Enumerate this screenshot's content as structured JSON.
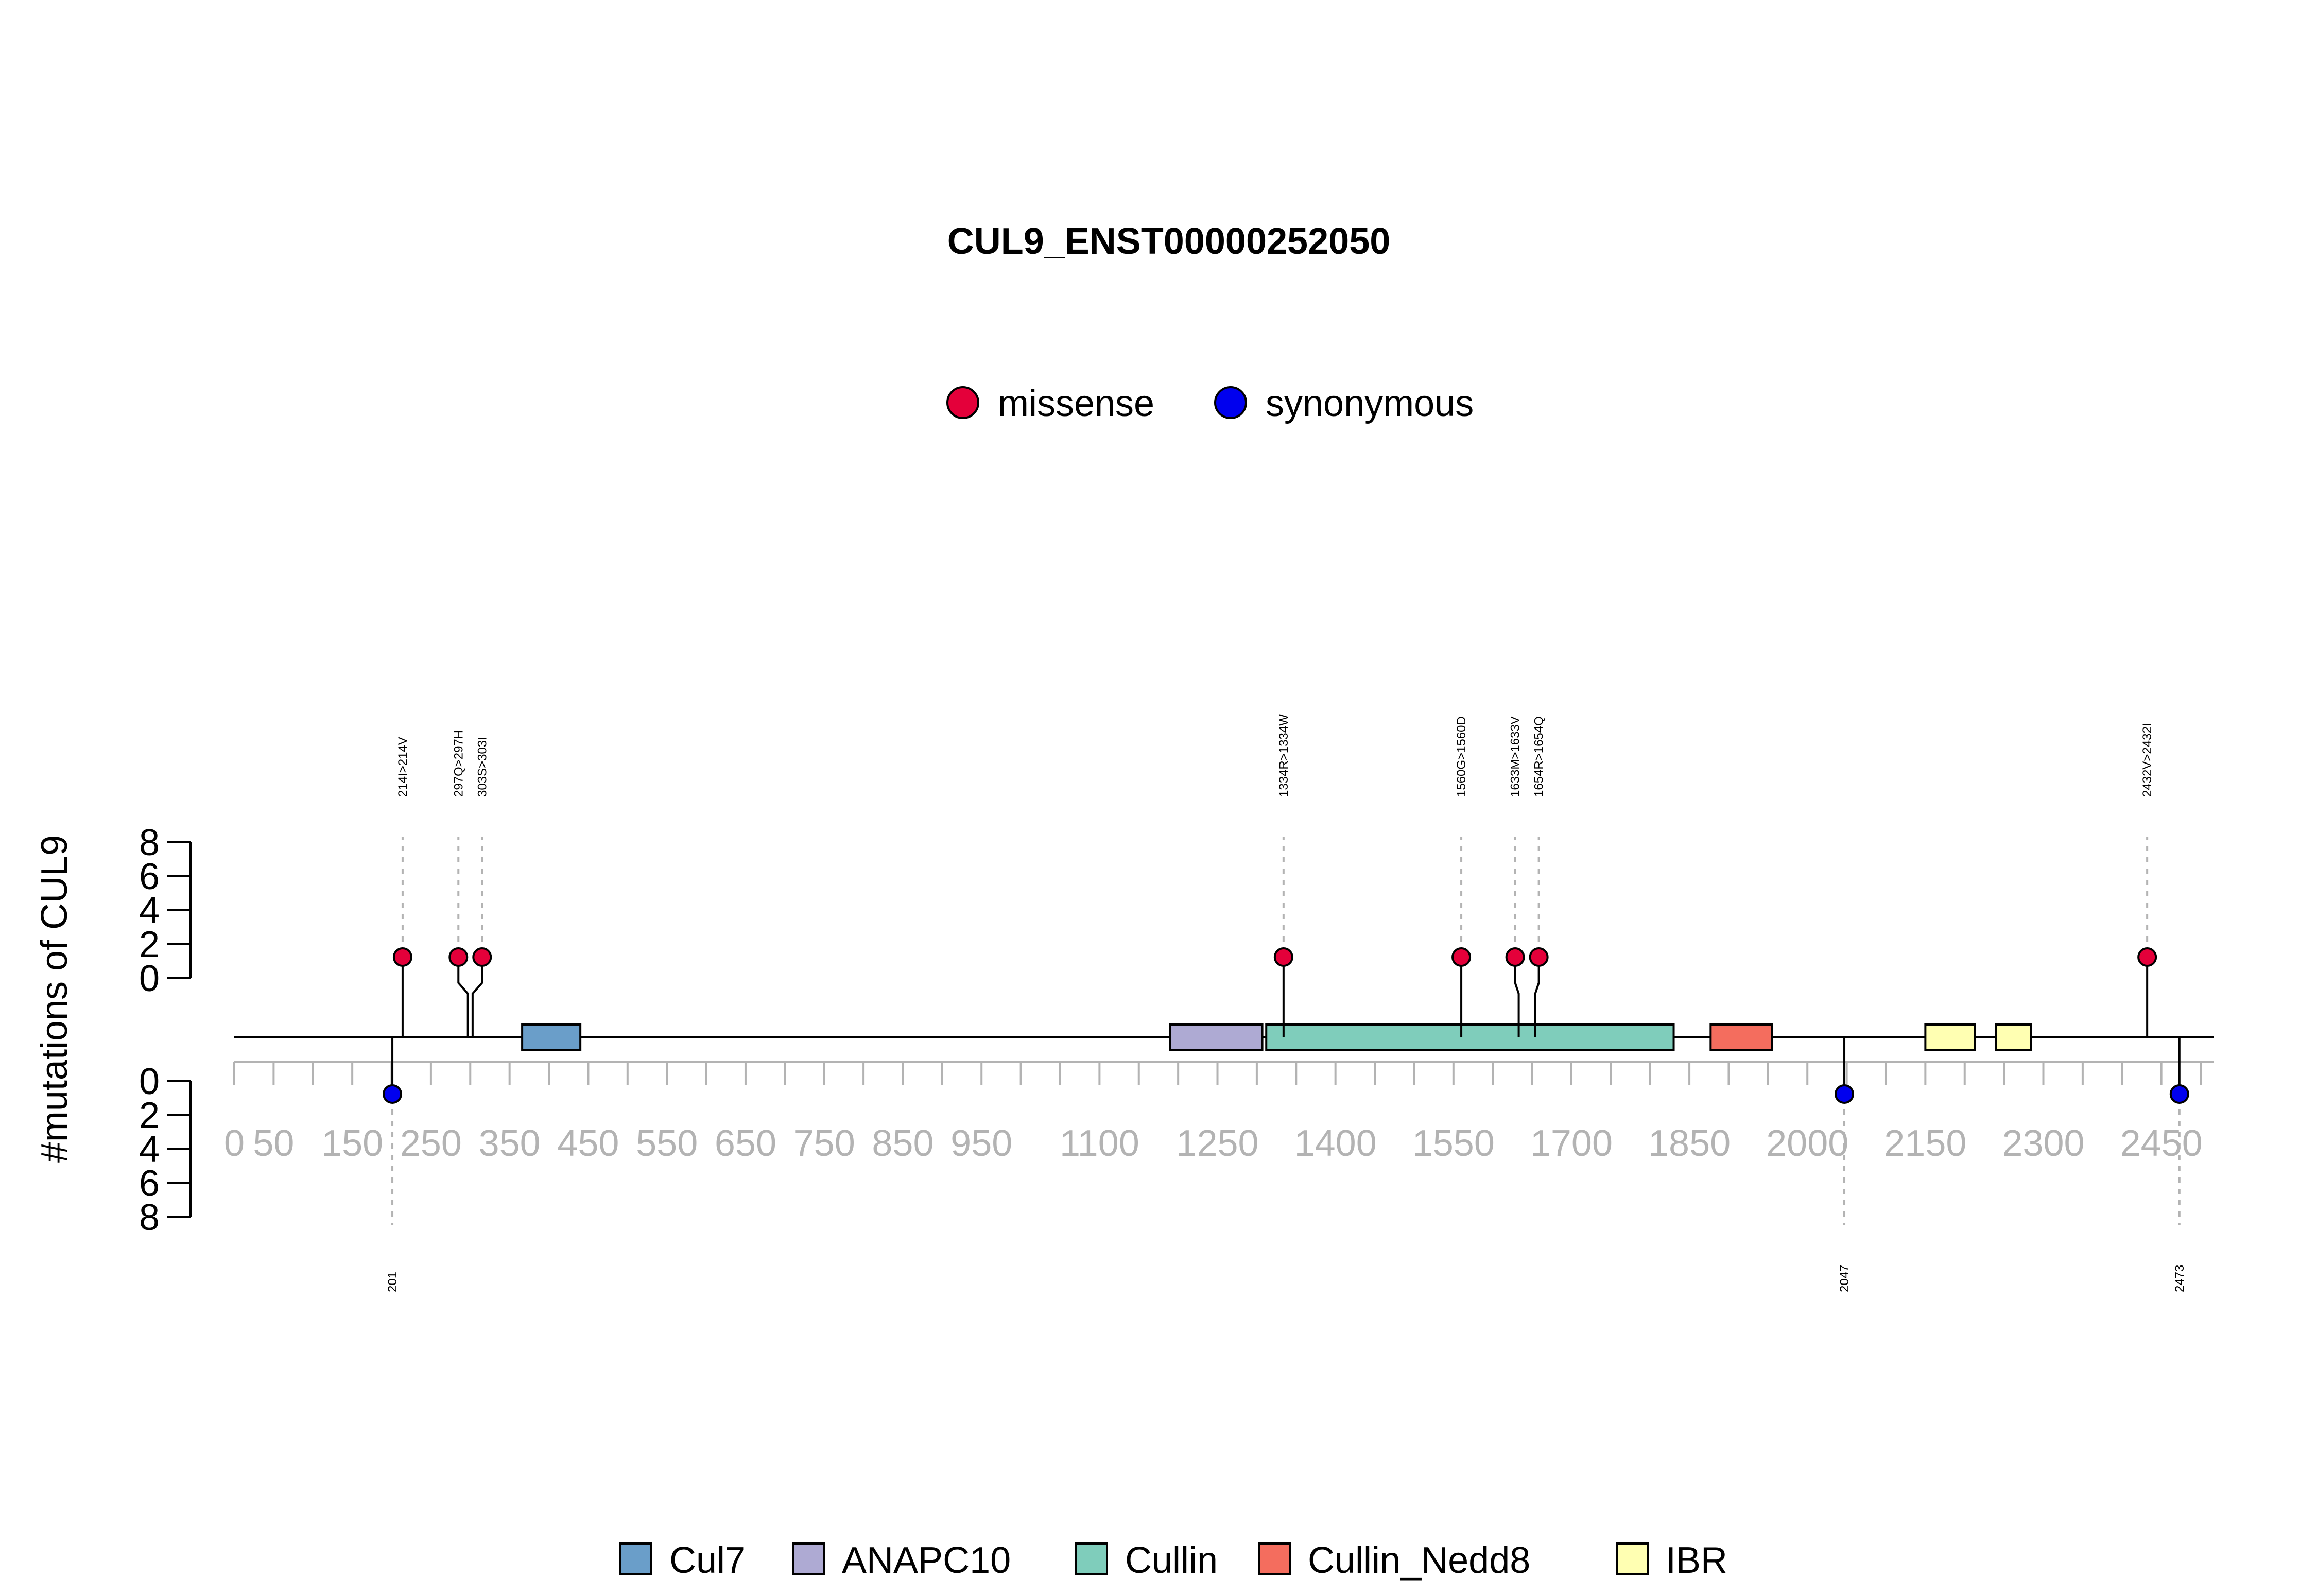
{
  "chart_data": {
    "type": "lollipop",
    "title": "CUL9_ENST00000252050",
    "ylabel": "#mutations of CUL9",
    "protein_length": 2517,
    "ylim_top": [
      0,
      8
    ],
    "ylim_bottom": [
      0,
      8
    ],
    "y_ticks": [
      "0",
      "2",
      "4",
      "6",
      "8"
    ],
    "x_tick_labels": [
      "0",
      "50",
      "150",
      "250",
      "350",
      "450",
      "550",
      "650",
      "750",
      "850",
      "950",
      "1100",
      "1250",
      "1400",
      "1550",
      "1700",
      "1850",
      "2000",
      "2150",
      "2300",
      "2450"
    ],
    "x_tick_positions": [
      0,
      50,
      150,
      250,
      350,
      450,
      550,
      650,
      750,
      850,
      950,
      1100,
      1250,
      1400,
      1550,
      1700,
      1850,
      2000,
      2150,
      2300,
      2450
    ],
    "x_minor_tick_step": 50,
    "mutation_legend": [
      {
        "name": "missense",
        "color": "#e4003a"
      },
      {
        "name": "synonymous",
        "color": "#0000ee"
      }
    ],
    "domain_legend": [
      {
        "name": "Cul7",
        "color": "#6a9ec9"
      },
      {
        "name": "ANAPC10",
        "color": "#aeaad3"
      },
      {
        "name": "Cullin",
        "color": "#7fcdbb"
      },
      {
        "name": "Cullin_Nedd8",
        "color": "#f46d5e"
      },
      {
        "name": "IBR",
        "color": "#ffffb2"
      }
    ],
    "domains": [
      {
        "name": "Cul7",
        "start": 366,
        "end": 440
      },
      {
        "name": "ANAPC10",
        "start": 1190,
        "end": 1307
      },
      {
        "name": "Cullin",
        "start": 1312,
        "end": 1830
      },
      {
        "name": "Cullin_Nedd8",
        "start": 1877,
        "end": 1955
      },
      {
        "name": "IBR",
        "start": 2150,
        "end": 2213
      },
      {
        "name": "IBR",
        "start": 2240,
        "end": 2284
      }
    ],
    "mutations_top": [
      {
        "label": "214I>214V",
        "position": 214,
        "count": 1,
        "type": "missense"
      },
      {
        "label": "297Q>297H",
        "position": 297,
        "count": 1,
        "type": "missense"
      },
      {
        "label": "303S>303I",
        "position": 303,
        "count": 1,
        "type": "missense"
      },
      {
        "label": "1334R>1334W",
        "position": 1334,
        "count": 1,
        "type": "missense"
      },
      {
        "label": "1560G>1560D",
        "position": 1560,
        "count": 1,
        "type": "missense"
      },
      {
        "label": "1633M>1633V",
        "position": 1633,
        "count": 1,
        "type": "missense"
      },
      {
        "label": "1654R>1654Q",
        "position": 1654,
        "count": 1,
        "type": "missense"
      },
      {
        "label": "2432V>2432I",
        "position": 2432,
        "count": 1,
        "type": "missense"
      }
    ],
    "mutations_bottom": [
      {
        "label": "201",
        "position": 201,
        "count": 1,
        "type": "synonymous"
      },
      {
        "label": "2047",
        "position": 2047,
        "count": 1,
        "type": "synonymous"
      },
      {
        "label": "2473",
        "position": 2473,
        "count": 1,
        "type": "synonymous"
      }
    ]
  }
}
